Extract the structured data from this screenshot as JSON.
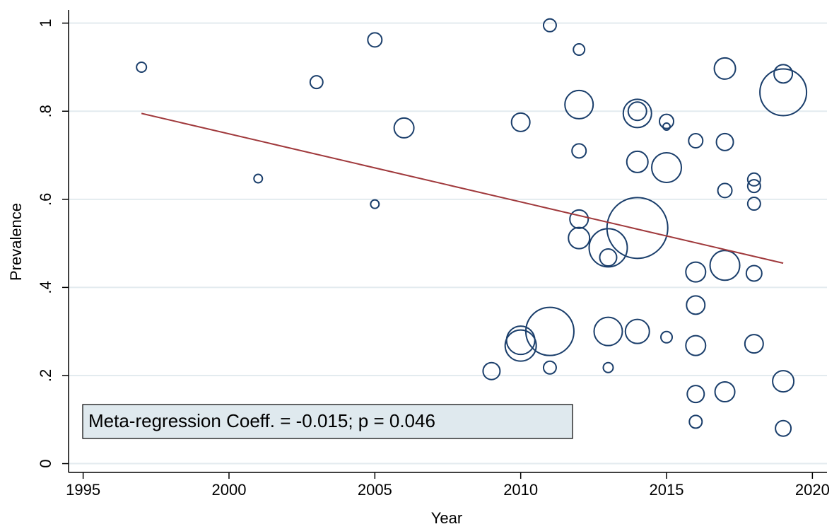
{
  "chart_data": {
    "type": "scatter",
    "xlabel": "Year",
    "ylabel": "Prevalence",
    "xlim": [
      1994.5,
      2020.5
    ],
    "ylim": [
      -0.02,
      1.03
    ],
    "xticks": [
      1995,
      2000,
      2005,
      2010,
      2015,
      2020
    ],
    "yticks": [
      0,
      {
        "value": 0.2,
        "label": ".2"
      },
      {
        "value": 0.4,
        "label": ".4"
      },
      {
        "value": 0.6,
        "label": ".6"
      },
      {
        "value": 0.8,
        "label": ".8"
      },
      1
    ],
    "grid": true,
    "series": [
      {
        "color": "#1a3e6b",
        "x": [
          1997,
          2001,
          2003,
          2005,
          2005,
          2006,
          2009,
          2010,
          2010,
          2010,
          2011,
          2011,
          2011,
          2012,
          2012,
          2012,
          2012,
          2012,
          2013,
          2013,
          2013,
          2013,
          2014,
          2014,
          2014,
          2014,
          2014,
          2015,
          2015,
          2015,
          2015,
          2016,
          2016,
          2016,
          2016,
          2016,
          2016,
          2017,
          2017,
          2017,
          2017,
          2017,
          2018,
          2018,
          2018,
          2018,
          2018,
          2019,
          2019,
          2019,
          2019
        ],
        "values": [
          0.9,
          0.647,
          0.866,
          0.962,
          0.589,
          0.762,
          0.21,
          0.775,
          0.28,
          0.268,
          0.995,
          0.3,
          0.218,
          0.94,
          0.815,
          0.71,
          0.555,
          0.512,
          0.49,
          0.468,
          0.3,
          0.218,
          0.795,
          0.8,
          0.685,
          0.535,
          0.3,
          0.777,
          0.765,
          0.672,
          0.287,
          0.733,
          0.435,
          0.36,
          0.268,
          0.158,
          0.095,
          0.897,
          0.73,
          0.62,
          0.45,
          0.163,
          0.645,
          0.63,
          0.59,
          0.432,
          0.272,
          0.885,
          0.843,
          0.187,
          0.08
        ],
        "sizes": [
          7,
          6,
          9,
          10,
          6,
          14,
          12,
          13,
          20,
          22,
          9,
          34,
          9,
          8,
          20,
          10,
          13,
          15,
          27,
          12,
          20,
          7,
          20,
          13,
          15,
          43,
          17,
          10,
          5,
          21,
          8,
          10,
          14,
          13,
          14,
          12,
          9,
          15,
          12,
          10,
          21,
          14,
          9,
          9,
          9,
          11,
          13,
          13,
          33,
          15,
          11
        ]
      }
    ],
    "fit": {
      "color": "#a0393c",
      "x": [
        1997,
        2019
      ],
      "values": [
        0.795,
        0.455
      ]
    },
    "annotation": "Meta-regression Coeff. = -0.015; p = 0.046"
  }
}
